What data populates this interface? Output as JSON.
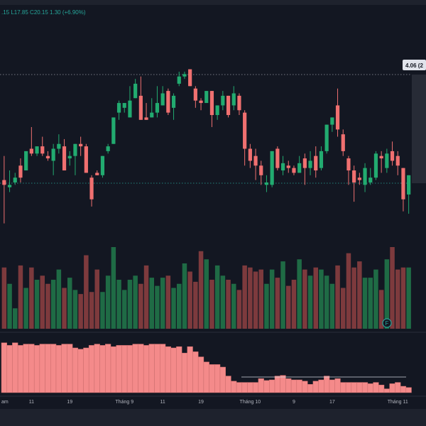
{
  "ohlc_header": ".15  L17.85  C20.15  1.30 (+6.90%)",
  "price_label": "4.06 (2",
  "colors": {
    "background": "#131722",
    "up": "#26a69a",
    "down": "#ef5350",
    "up_candle": "#22ab70",
    "down_candle": "#f07070",
    "vol_up": "#1f6b45",
    "vol_down": "#7d3a3d",
    "indicator": "#f48a8a",
    "grid_line": "#2a2e39",
    "axis_text": "#b2b5be"
  },
  "flag_icon_label": "F",
  "chart_data": [
    {
      "type": "candlestick",
      "title": "",
      "xlabel": "",
      "ylabel": "",
      "x_ticks": [
        "am",
        "11",
        "19",
        "Tháng 9",
        "11",
        "19",
        "Tháng 10",
        "9",
        "17",
        "Tháng 11"
      ],
      "reference_lines": [
        "dotted-horizontal-top",
        "dotted-horizontal-bottom"
      ],
      "series": [
        {
          "candles": [
            [
              0.6,
              0.58,
              0.7,
              0.42
            ],
            [
              0.57,
              0.58,
              0.64,
              0.55
            ],
            [
              0.59,
              0.61,
              0.63,
              0.58
            ],
            [
              0.66,
              0.61,
              0.69,
              0.59
            ],
            [
              0.64,
              0.72,
              0.72,
              0.64
            ],
            [
              0.73,
              0.71,
              0.82,
              0.7
            ],
            [
              0.71,
              0.74,
              0.74,
              0.7
            ],
            [
              0.74,
              0.71,
              0.78,
              0.7
            ],
            [
              0.7,
              0.69,
              0.72,
              0.68
            ],
            [
              0.68,
              0.73,
              0.75,
              0.62
            ],
            [
              0.73,
              0.75,
              0.79,
              0.71
            ],
            [
              0.74,
              0.64,
              0.77,
              0.64
            ],
            [
              0.69,
              0.7,
              0.72,
              0.66
            ],
            [
              0.7,
              0.75,
              0.75,
              0.62
            ],
            [
              0.75,
              0.74,
              0.78,
              0.7
            ],
            [
              0.74,
              0.63,
              0.75,
              0.63
            ],
            [
              0.61,
              0.52,
              0.62,
              0.49
            ],
            [
              0.63,
              0.62,
              0.64,
              0.62
            ],
            [
              0.62,
              0.7,
              0.7,
              0.61
            ],
            [
              0.72,
              0.74,
              0.75,
              0.71
            ],
            [
              0.75,
              0.86,
              0.86,
              0.75
            ],
            [
              0.88,
              0.92,
              0.93,
              0.85
            ],
            [
              0.9,
              0.92,
              0.92,
              0.88
            ],
            [
              0.86,
              0.93,
              0.99,
              0.86
            ],
            [
              0.94,
              1.0,
              1.02,
              0.94
            ],
            [
              0.95,
              0.85,
              1.03,
              0.85
            ],
            [
              0.86,
              0.85,
              0.92,
              0.85
            ],
            [
              0.86,
              0.88,
              0.94,
              0.86
            ],
            [
              0.88,
              0.92,
              0.99,
              0.86
            ],
            [
              0.91,
              0.96,
              0.99,
              0.91
            ],
            [
              0.97,
              0.88,
              0.98,
              0.87
            ],
            [
              0.9,
              0.95,
              0.96,
              0.85
            ],
            [
              1.0,
              1.03,
              1.05,
              0.99
            ],
            [
              1.03,
              1.04,
              1.05,
              1.02
            ],
            [
              1.06,
              0.99,
              1.06,
              0.99
            ],
            [
              0.98,
              0.93,
              0.99,
              0.9
            ],
            [
              0.93,
              0.92,
              0.94,
              0.89
            ],
            [
              0.92,
              0.97,
              0.97,
              0.92
            ],
            [
              0.97,
              0.87,
              0.97,
              0.82
            ],
            [
              0.87,
              0.91,
              0.91,
              0.85
            ],
            [
              0.91,
              0.95,
              0.97,
              0.89
            ],
            [
              0.95,
              0.87,
              0.95,
              0.86
            ],
            [
              0.91,
              0.96,
              0.99,
              0.89
            ],
            [
              0.95,
              0.89,
              0.96,
              0.87
            ],
            [
              0.88,
              0.73,
              0.89,
              0.66
            ],
            [
              0.73,
              0.68,
              0.75,
              0.65
            ],
            [
              0.7,
              0.66,
              0.73,
              0.6
            ],
            [
              0.66,
              0.62,
              0.68,
              0.58
            ],
            [
              0.58,
              0.59,
              0.62,
              0.55
            ],
            [
              0.58,
              0.72,
              0.72,
              0.57
            ],
            [
              0.73,
              0.65,
              0.74,
              0.64
            ],
            [
              0.64,
              0.67,
              0.7,
              0.62
            ],
            [
              0.66,
              0.65,
              0.68,
              0.63
            ],
            [
              0.65,
              0.63,
              0.66,
              0.62
            ],
            [
              0.63,
              0.67,
              0.7,
              0.63
            ],
            [
              0.69,
              0.65,
              0.71,
              0.58
            ],
            [
              0.65,
              0.68,
              0.72,
              0.62
            ],
            [
              0.7,
              0.64,
              0.74,
              0.61
            ],
            [
              0.65,
              0.72,
              0.74,
              0.64
            ],
            [
              0.72,
              0.83,
              0.83,
              0.71
            ],
            [
              0.83,
              0.86,
              0.86,
              0.8
            ],
            [
              0.91,
              0.81,
              0.98,
              0.78
            ],
            [
              0.79,
              0.72,
              0.81,
              0.7
            ],
            [
              0.69,
              0.64,
              0.7,
              0.58
            ],
            [
              0.64,
              0.59,
              0.66,
              0.51
            ],
            [
              0.61,
              0.6,
              0.63,
              0.58
            ],
            [
              0.58,
              0.65,
              0.67,
              0.55
            ],
            [
              0.59,
              0.61,
              0.65,
              0.58
            ],
            [
              0.61,
              0.71,
              0.72,
              0.6
            ],
            [
              0.7,
              0.69,
              0.72,
              0.63
            ],
            [
              0.65,
              0.71,
              0.73,
              0.63
            ],
            [
              0.72,
              0.68,
              0.76,
              0.66
            ],
            [
              0.7,
              0.66,
              0.72,
              0.62
            ],
            [
              0.65,
              0.52,
              0.65,
              0.47
            ],
            [
              0.54,
              0.62,
              0.62,
              0.46
            ]
          ]
        },
        {
          "name": "volume",
          "values": [
            30,
            22,
            10,
            31,
            20,
            30,
            24,
            26,
            22,
            24,
            29,
            20,
            25,
            19,
            17,
            36,
            18,
            29,
            18,
            26,
            40,
            24,
            19,
            24,
            26,
            22,
            31,
            25,
            21,
            25,
            26,
            20,
            22,
            32,
            28,
            23,
            38,
            34,
            24,
            31,
            26,
            24,
            22,
            19,
            31,
            30,
            28,
            29,
            22,
            29,
            25,
            33,
            21,
            24,
            34,
            29,
            26,
            30,
            29,
            26,
            22,
            31,
            20,
            37,
            30,
            33,
            25,
            25,
            29,
            19,
            34,
            40,
            29,
            30,
            30
          ]
        },
        {
          "name": "indicator",
          "values": [
            78,
            74,
            78,
            74,
            76,
            76,
            74,
            76,
            76,
            76,
            74,
            76,
            76,
            70,
            68,
            70,
            74,
            76,
            74,
            76,
            72,
            74,
            74,
            74,
            76,
            76,
            74,
            76,
            76,
            76,
            72,
            70,
            72,
            62,
            72,
            64,
            56,
            48,
            44,
            44,
            40,
            26,
            18,
            16,
            16,
            16,
            16,
            22,
            19,
            20,
            26,
            27,
            22,
            20,
            20,
            18,
            13,
            18,
            20,
            26,
            20,
            22,
            16,
            16,
            16,
            16,
            16,
            14,
            16,
            12,
            6,
            14,
            16,
            10,
            8
          ]
        }
      ]
    }
  ]
}
